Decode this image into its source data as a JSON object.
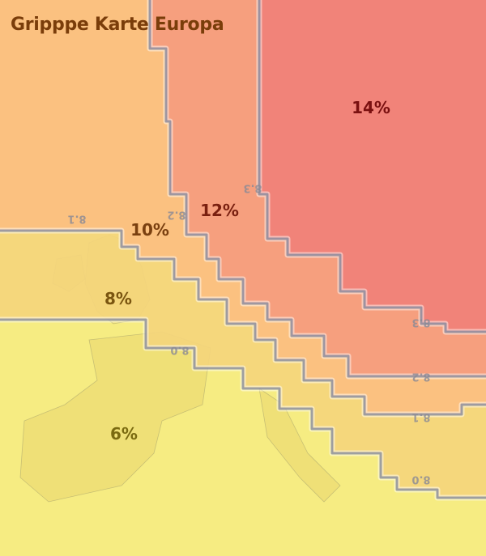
{
  "title": "Gripppe Karte Europa",
  "zones": [
    {
      "label": "6%",
      "value": 6,
      "color": "#f6ec82",
      "text_color": "#7a6a10"
    },
    {
      "label": "8%",
      "value": 8,
      "color": "#f4d57c",
      "text_color": "#7a5510"
    },
    {
      "label": "10%",
      "value": 10,
      "color": "#fbbf80",
      "text_color": "#7a4010"
    },
    {
      "label": "12%",
      "value": 12,
      "color": "#f59c7e",
      "text_color": "#7a2010"
    },
    {
      "label": "14%",
      "value": 14,
      "color": "#f08078",
      "text_color": "#7a1010"
    }
  ],
  "contour_labels": [
    "8.0",
    "8.1",
    "8.2",
    "8.3"
  ],
  "boundary_color": "#8f93a6"
}
